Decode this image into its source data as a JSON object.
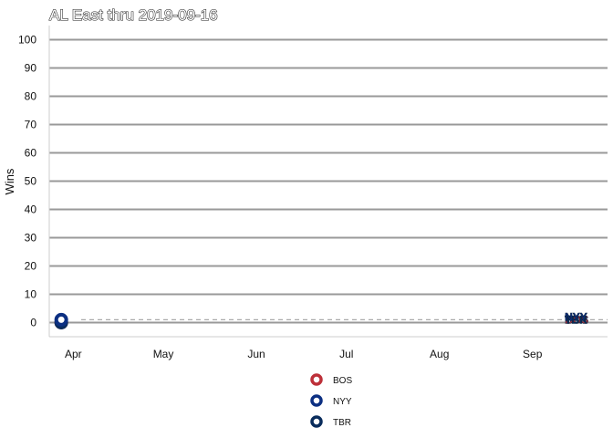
{
  "chart_data": {
    "type": "line",
    "title": "AL East thru 2019-09-16",
    "xlabel": "",
    "ylabel": "Wins",
    "ylim": [
      -5,
      105
    ],
    "yticks": [
      0,
      10,
      20,
      30,
      40,
      50,
      60,
      70,
      80,
      90,
      100
    ],
    "x_range": [
      "2019-03-24",
      "2019-09-26"
    ],
    "x_ticks": [
      {
        "label": "Apr",
        "date": "2019-04-01"
      },
      {
        "label": "May",
        "date": "2019-05-01"
      },
      {
        "label": "Jun",
        "date": "2019-06-01"
      },
      {
        "label": "Jul",
        "date": "2019-07-01"
      },
      {
        "label": "Aug",
        "date": "2019-08-01"
      },
      {
        "label": "Sep",
        "date": "2019-09-01"
      }
    ],
    "grid": "horizontal",
    "reference_line": {
      "y": 1,
      "style": "dashed"
    },
    "legend_position": "bottom",
    "series": [
      {
        "name": "BOS",
        "color": "#bd3039",
        "start": {
          "date": "2019-03-28",
          "wins": 0
        },
        "end": {
          "date": "2019-09-16",
          "wins": 1
        }
      },
      {
        "name": "NYY",
        "color": "#0c2f82",
        "start": {
          "date": "2019-03-28",
          "wins": 1
        },
        "end": {
          "date": "2019-09-16",
          "wins": 2
        }
      },
      {
        "name": "TBR",
        "color": "#092c5c",
        "start": {
          "date": "2019-03-28",
          "wins": 0
        },
        "end": {
          "date": "2019-09-16",
          "wins": 1
        }
      }
    ]
  }
}
